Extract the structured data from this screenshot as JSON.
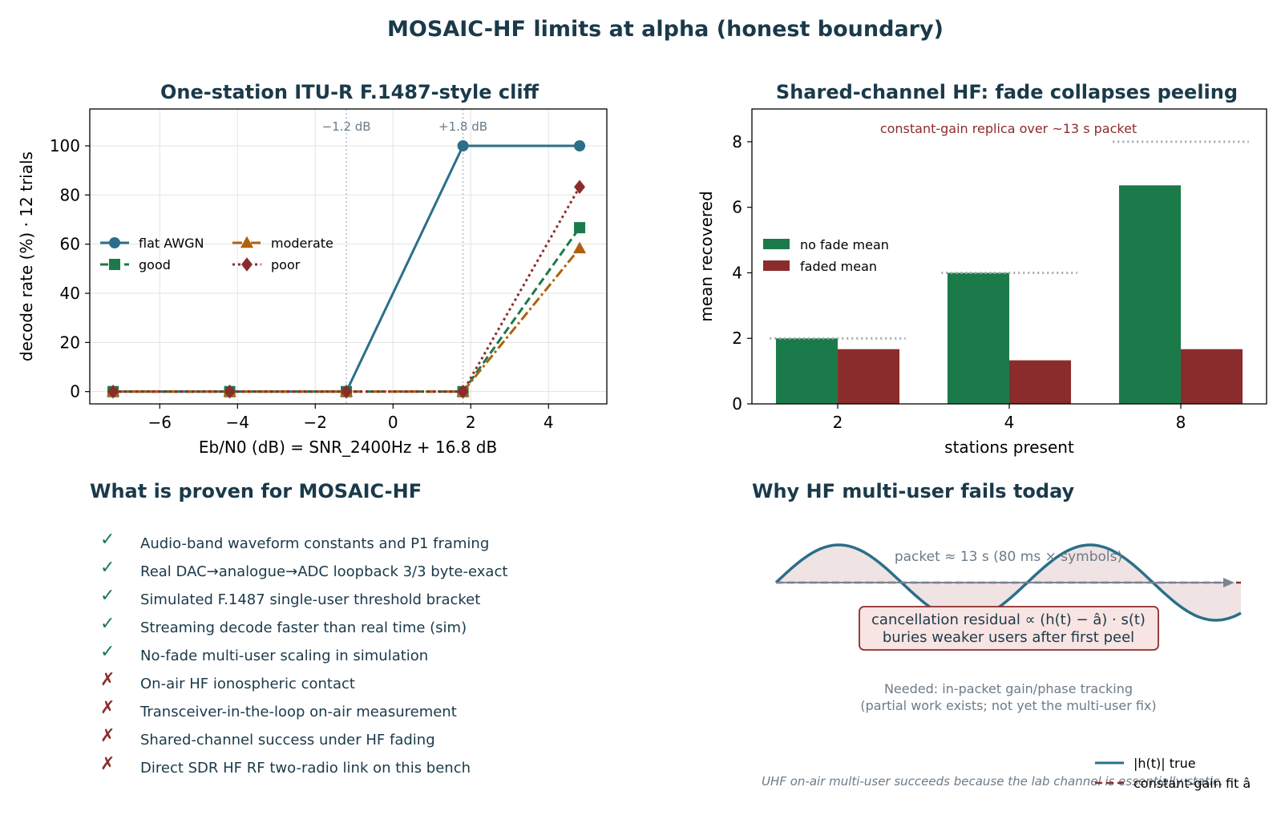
{
  "suptitle": "MOSAIC-HF limits at alpha (honest boundary)",
  "colors": {
    "title": "#1a3a4a",
    "flat": "#2b6f8a",
    "good": "#1b7a4a",
    "moderate": "#b0600f",
    "poor": "#8b2c2c",
    "nofade": "#1b7a4a",
    "faded": "#8b2c2c",
    "check": "#1b7a4a",
    "cross": "#8b2c2c",
    "muted": "#6b7b88"
  },
  "chart_data": [
    {
      "type": "line",
      "title": "One-station ITU-R F.1487-style cliff",
      "xlabel": "Eb/N0 (dB)  =  SNR_2400Hz + 16.8 dB",
      "ylabel": "decode rate (%) · 12 trials",
      "xlim": [
        -7.8,
        5.5
      ],
      "ylim": [
        -5,
        115
      ],
      "xticks": [
        -6,
        -4,
        -2,
        0,
        2,
        4
      ],
      "xtick_labels": [
        "−6",
        "−4",
        "−2",
        "0",
        "2",
        "4"
      ],
      "yticks": [
        0,
        20,
        40,
        60,
        80,
        100
      ],
      "grid": true,
      "legend": "center-left",
      "x": [
        -7.2,
        -4.2,
        -1.2,
        1.8,
        4.8
      ],
      "series": [
        {
          "name": "flat AWGN",
          "values": [
            0,
            0,
            0,
            100,
            100
          ],
          "marker": "circle",
          "dash": "solid"
        },
        {
          "name": "good",
          "values": [
            0,
            0,
            0,
            0,
            66.7
          ],
          "marker": "square",
          "dash": "dashed"
        },
        {
          "name": "moderate",
          "values": [
            0,
            0,
            0,
            0,
            58.3
          ],
          "marker": "triangle",
          "dash": "dashdot"
        },
        {
          "name": "poor",
          "values": [
            0,
            0,
            0,
            0,
            83.3
          ],
          "marker": "diamond",
          "dash": "dotted"
        }
      ],
      "vlines": [
        {
          "x": -1.2,
          "label": "−1.2 dB"
        },
        {
          "x": 1.8,
          "label": "+1.8 dB"
        }
      ]
    },
    {
      "type": "bar",
      "title": "Shared-channel HF: fade collapses peeling",
      "xlabel": "stations present",
      "ylabel": "mean recovered",
      "categories": [
        "2",
        "4",
        "8"
      ],
      "ylim": [
        0,
        9
      ],
      "yticks": [
        0,
        2,
        4,
        6,
        8
      ],
      "legend": "center-left",
      "series": [
        {
          "name": "no fade mean",
          "values": [
            2.0,
            4.0,
            6.67
          ]
        },
        {
          "name": "faded mean",
          "values": [
            1.67,
            1.33,
            1.67
          ]
        }
      ],
      "ideal": [
        2,
        4,
        8
      ],
      "annotation": "constant-gain replica over ~13 s packet"
    }
  ],
  "proven": {
    "title": "What is proven for MOSAIC-HF",
    "items": [
      {
        "ok": true,
        "mark": "✓",
        "text": "Audio-band waveform constants and P1 framing"
      },
      {
        "ok": true,
        "mark": "✓",
        "text": "Real DAC→analogue→ADC loopback 3/3 byte-exact"
      },
      {
        "ok": true,
        "mark": "✓",
        "text": "Simulated F.1487 single-user threshold bracket"
      },
      {
        "ok": true,
        "mark": "✓",
        "text": "Streaming decode faster than real time (sim)"
      },
      {
        "ok": true,
        "mark": "✓",
        "text": "No-fade multi-user scaling in simulation"
      },
      {
        "ok": false,
        "mark": "✗",
        "text": "On-air HF ionospheric contact"
      },
      {
        "ok": false,
        "mark": "✗",
        "text": "Transceiver-in-the-loop on-air measurement"
      },
      {
        "ok": false,
        "mark": "✗",
        "text": "Shared-channel success under HF fading"
      },
      {
        "ok": false,
        "mark": "✗",
        "text": "Direct SDR HF RF two-radio link on this bench"
      }
    ]
  },
  "why": {
    "title": "Why HF multi-user fails today",
    "packet_label": "packet ≈ 13 s  (80 ms × symbols)",
    "residual_line1": "cancellation residual ∝ (h(t) − â) · s(t)",
    "residual_line2": "buries weaker users after first peel",
    "needed_line1": "Needed: in-packet gain/phase tracking",
    "needed_line2": "(partial work exists; not yet the multi-user fix)",
    "legend_true": "|h(t)| true",
    "legend_fit": "constant-gain fit â",
    "footnote": "UHF on-air multi-user succeeds because the lab channel is essentially static."
  }
}
